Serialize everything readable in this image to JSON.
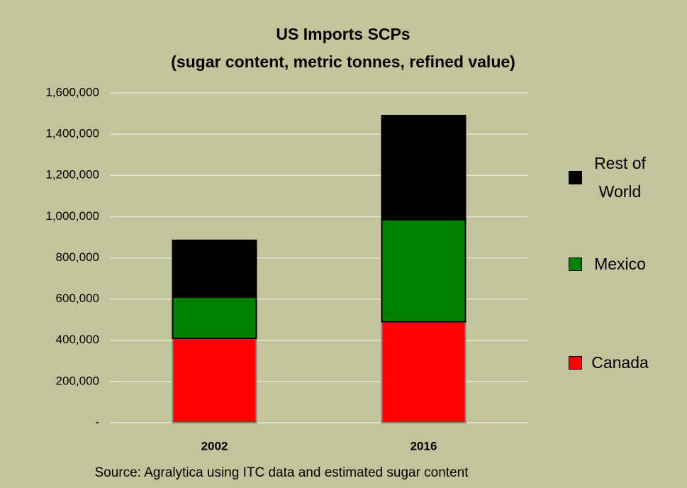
{
  "chart_data": {
    "type": "stacked_bar",
    "title": "US Imports SCPs",
    "subtitle": "(sugar content, metric tonnes, refined value)",
    "source": "Source: Agralytica using ITC data and estimated sugar content",
    "categories": [
      "2002",
      "2016"
    ],
    "series": [
      {
        "name": "Canada",
        "color": "#ff0000",
        "values": [
          410000,
          490000
        ]
      },
      {
        "name": "Mexico",
        "color": "#008000",
        "values": [
          200000,
          495000
        ]
      },
      {
        "name": "Rest of World",
        "color": "#000000",
        "values": [
          275000,
          505000
        ]
      }
    ],
    "ylim": [
      0,
      1600000
    ],
    "yticks": [
      {
        "value": 0,
        "label": "-"
      },
      {
        "value": 200000,
        "label": "200,000"
      },
      {
        "value": 400000,
        "label": "400,000"
      },
      {
        "value": 600000,
        "label": "600,000"
      },
      {
        "value": 800000,
        "label": "800,000"
      },
      {
        "value": 1000000,
        "label": "1,000,000"
      },
      {
        "value": 1200000,
        "label": "1,200,000"
      },
      {
        "value": 1400000,
        "label": "1,400,000"
      },
      {
        "value": 1600000,
        "label": "1,600,000"
      }
    ],
    "grid": true,
    "legend": "right"
  }
}
